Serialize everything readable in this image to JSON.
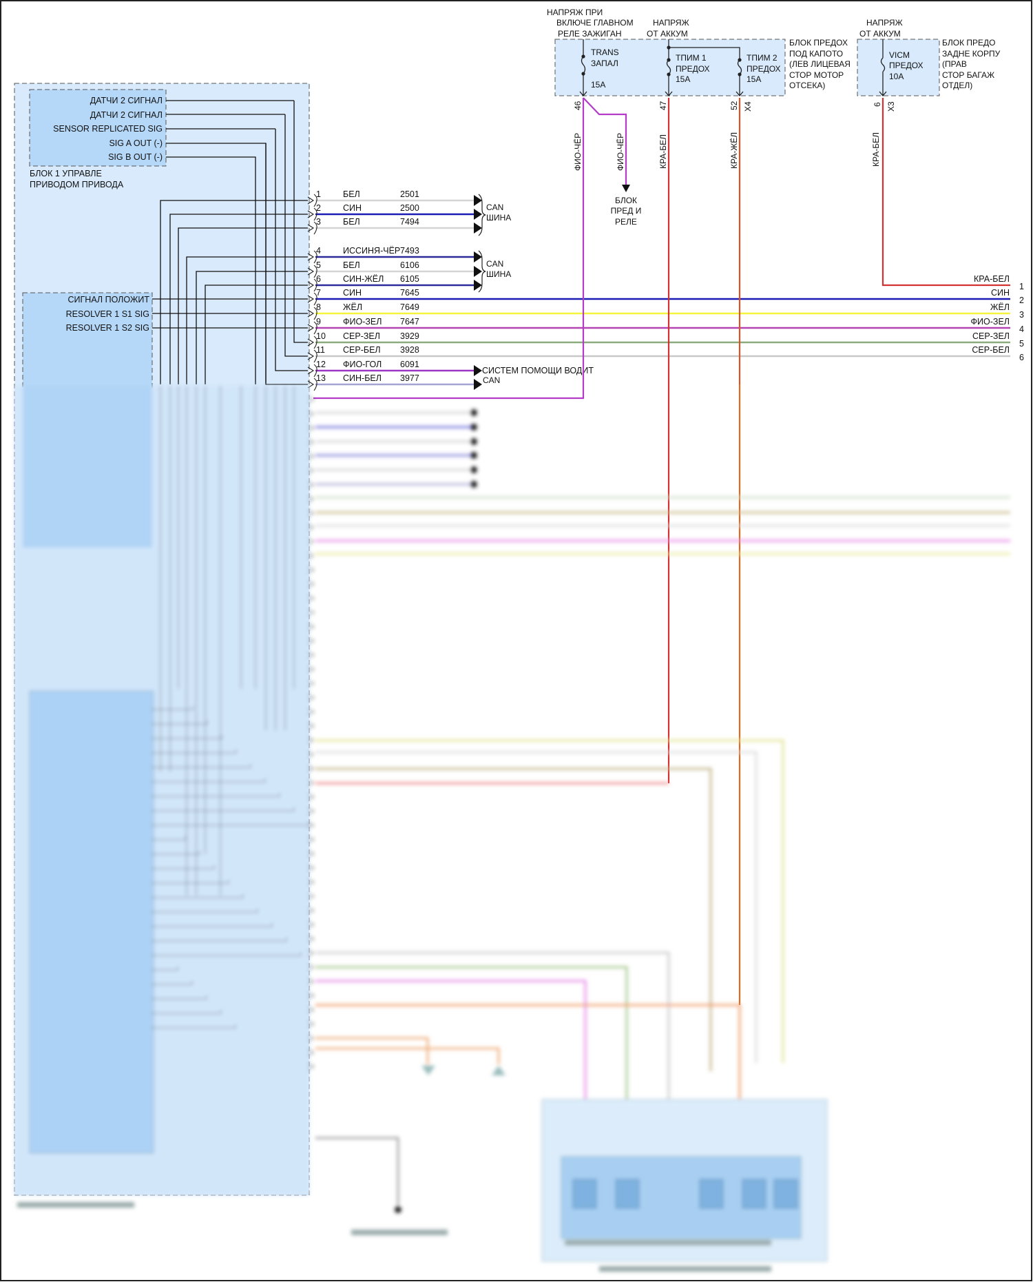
{
  "fuse_panel_1": {
    "supply_ign": [
      "НАПРЯЖ ПРИ",
      "ВКЛЮЧЕ ГЛАВНОМ",
      "РЕЛЕ ЗАЖИГАН"
    ],
    "supply_batt": [
      "НАПРЯЖ",
      "ОТ АККУМ"
    ],
    "name": [
      "БЛОК ПРЕДОХ",
      "ПОД КАПОТО",
      "(ЛЕВ ЛИЦЕВАЯ",
      "СТОР МОТОР",
      "ОТСЕКА)"
    ],
    "fuses": [
      {
        "lines": [
          "TRANS",
          "ЗАПАЛ"
        ],
        "rating": "15A",
        "pin": "46",
        "wire": "ФИО-ЧЁР"
      },
      {
        "lines": [
          "ТПИМ 1",
          "ПРЕДОХ"
        ],
        "rating": "15A",
        "pin": "47",
        "wire": "КРА-БЕЛ"
      },
      {
        "lines": [
          "ТПИМ 2",
          "ПРЕДОХ"
        ],
        "rating": "15A",
        "pin": "52",
        "wire": "КРА-ЖЁЛ"
      }
    ],
    "connector": "X4",
    "branch": {
      "wire": "ФИО-ЧЁР",
      "target": [
        "БЛОК",
        "ПРЕД И",
        "РЕЛЕ"
      ]
    }
  },
  "fuse_panel_2": {
    "supply_batt": [
      "НАПРЯЖ",
      "ОТ АККУМ"
    ],
    "name": [
      "БЛОК ПРЕДО",
      "ЗАДНЕ КОРПУ",
      "(ПРАВ",
      "СТОР БАГАЖ",
      "ОТДЕЛ)"
    ],
    "fuse": {
      "lines": [
        "VICM",
        "ПРЕДОХ"
      ],
      "rating": "10A",
      "pin": "6",
      "wire": "КРА-БЕЛ"
    },
    "connector": "X3"
  },
  "module": {
    "sub1_pins": [
      "ДАТЧИ 2 СИГНАЛ",
      "ДАТЧИ 2 СИГНАЛ",
      "SENSOR REPLICATED SIG",
      "SIG A OUT (-)",
      "SIG B OUT (-)"
    ],
    "sub1_name": [
      "БЛОК 1 УПРАВЛЕ",
      "ПРИВОДОМ ПРИВОДА"
    ],
    "sub2_pins": [
      "СИГНАЛ ПОЛОЖИТ",
      "RESOLVER 1 S1 SIG",
      "RESOLVER 1 S2 SIG"
    ]
  },
  "connector_rows": [
    {
      "pin": "1",
      "color": "БЕЛ",
      "circuit": "2501",
      "wire": "#d4d4d4"
    },
    {
      "pin": "2",
      "color": "СИН",
      "circuit": "2500",
      "wire": "#1c1cb4"
    },
    {
      "pin": "3",
      "color": "БЕЛ",
      "circuit": "7494",
      "wire": "#d4d4d4"
    },
    {
      "pin": "4",
      "color": "ИССИНЯ-ЧЁР",
      "circuit": "7493",
      "wire": "#2b2b9c"
    },
    {
      "pin": "5",
      "color": "БЕЛ",
      "circuit": "6106",
      "wire": "#d4d4d4"
    },
    {
      "pin": "6",
      "color": "СИН-ЖЁЛ",
      "circuit": "6105",
      "wire": "#2b2b9c"
    },
    {
      "pin": "7",
      "color": "СИН",
      "circuit": "7645",
      "wire": "#1c1cb4"
    },
    {
      "pin": "8",
      "color": "ЖЁЛ",
      "circuit": "7649",
      "wire": "#f4f43c"
    },
    {
      "pin": "9",
      "color": "ФИО-ЗЕЛ",
      "circuit": "7647",
      "wire": "#b444b4"
    },
    {
      "pin": "10",
      "color": "СЕР-ЗЕЛ",
      "circuit": "3929",
      "wire": "#8cab7c"
    },
    {
      "pin": "11",
      "color": "СЕР-БЕЛ",
      "circuit": "3928",
      "wire": "#c8c8c8"
    },
    {
      "pin": "12",
      "color": "ФИО-ГОЛ",
      "circuit": "6091",
      "wire": "#9c34c4"
    },
    {
      "pin": "13",
      "color": "СИН-БЕЛ",
      "circuit": "3977",
      "wire": "#a4a4d4"
    }
  ],
  "can_bus_label": [
    "CAN",
    "ШИНА"
  ],
  "driver_assist": {
    "label": "СИСТЕМ ПОМОЩИ ВОДИТ",
    "sub": "CAN"
  },
  "right_connector": [
    {
      "pin": "1",
      "color": "КРА-БЕЛ",
      "wire": "#d23232"
    },
    {
      "pin": "2",
      "color": "СИН",
      "wire": "#1c1cb4"
    },
    {
      "pin": "3",
      "color": "ЖЁЛ",
      "wire": "#f4f43c"
    },
    {
      "pin": "4",
      "color": "ФИО-ЗЕЛ",
      "wire": "#b444b4"
    },
    {
      "pin": "5",
      "color": "СЕР-ЗЕЛ",
      "wire": "#8cab7c"
    },
    {
      "pin": "6",
      "color": "СЕР-БЕЛ",
      "wire": "#c8c8c8"
    }
  ],
  "colors": {
    "module_fill": "#d8eafb",
    "submodule_fill": "#b6d8f8",
    "red": "#d23232",
    "orange": "#e2681e",
    "purple": "#b23cc8"
  }
}
